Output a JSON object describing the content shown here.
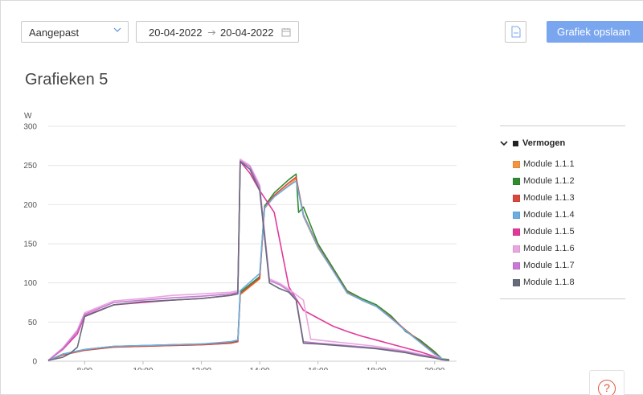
{
  "toolbar": {
    "range_select": "Aangepast",
    "date_from": "20-04-2022",
    "date_to": "20-04-2022",
    "save_label": "Grafiek opslaan"
  },
  "page_title": "Grafieken 5",
  "legend": {
    "group_label": "Vermogen"
  },
  "help_label": "?",
  "colors": {
    "accent": "#7aa6ef",
    "help": "#e0533a"
  },
  "chart_data": {
    "type": "line",
    "ylabel": "W",
    "ylim": [
      0,
      300
    ],
    "yticks": [
      0,
      50,
      100,
      150,
      200,
      250,
      300
    ],
    "xlim": [
      "06:45",
      "20:45"
    ],
    "xticks": [
      "8:00",
      "10:00",
      "12:00",
      "14:00",
      "16:00",
      "18:00",
      "20:00"
    ],
    "series": [
      {
        "name": "Module 1.1.1",
        "color": "#f5943f",
        "x": [
          "6:45",
          "7:15",
          "8:00",
          "9:00",
          "10:00",
          "11:00",
          "12:00",
          "13:00",
          "13:15",
          "13:20",
          "14:00",
          "14:10",
          "14:30",
          "15:00",
          "15:15",
          "15:30",
          "16:00",
          "17:00",
          "17:30",
          "18:00",
          "18:30",
          "19:00",
          "19:30",
          "20:00",
          "20:15",
          "20:30"
        ],
        "values": [
          1,
          8,
          14,
          18,
          19,
          20,
          21,
          23,
          25,
          85,
          105,
          195,
          210,
          225,
          233,
          185,
          145,
          88,
          78,
          70,
          55,
          40,
          25,
          10,
          3,
          1
        ]
      },
      {
        "name": "Module 1.1.2",
        "color": "#2e8b2e",
        "x": [
          "6:45",
          "7:15",
          "8:00",
          "9:00",
          "10:00",
          "11:00",
          "12:00",
          "13:00",
          "13:15",
          "13:20",
          "14:00",
          "14:10",
          "14:30",
          "15:00",
          "15:15",
          "15:20",
          "15:30",
          "16:00",
          "17:00",
          "17:30",
          "18:00",
          "18:30",
          "18:50",
          "19:00",
          "19:30",
          "20:00",
          "20:15",
          "20:30"
        ],
        "values": [
          1,
          9,
          15,
          19,
          20,
          21,
          22,
          24,
          26,
          88,
          108,
          198,
          215,
          232,
          239,
          190,
          197,
          150,
          90,
          80,
          72,
          58,
          45,
          38,
          27,
          12,
          3,
          2
        ]
      },
      {
        "name": "Module 1.1.3",
        "color": "#d9483b",
        "x": [
          "6:45",
          "7:15",
          "8:00",
          "9:00",
          "10:00",
          "11:00",
          "12:00",
          "13:00",
          "13:15",
          "13:20",
          "14:00",
          "14:10",
          "14:30",
          "15:00",
          "15:15",
          "15:30",
          "16:00",
          "17:00",
          "17:30",
          "18:00",
          "18:30",
          "19:00",
          "19:30",
          "20:00",
          "20:15",
          "20:30"
        ],
        "values": [
          1,
          8,
          14,
          18,
          19,
          20,
          21,
          23,
          25,
          86,
          106,
          196,
          212,
          228,
          235,
          187,
          147,
          88,
          78,
          70,
          56,
          40,
          25,
          10,
          3,
          1
        ]
      },
      {
        "name": "Module 1.1.4",
        "color": "#6aaee2",
        "x": [
          "6:45",
          "7:15",
          "8:00",
          "9:00",
          "10:00",
          "11:00",
          "12:00",
          "13:00",
          "13:15",
          "13:20",
          "14:00",
          "14:10",
          "14:30",
          "15:00",
          "15:15",
          "15:30",
          "16:00",
          "17:00",
          "17:30",
          "18:00",
          "18:30",
          "19:00",
          "19:30",
          "20:00",
          "20:15",
          "20:30"
        ],
        "values": [
          1,
          9,
          15,
          19,
          20,
          21,
          22,
          25,
          27,
          90,
          112,
          196,
          210,
          224,
          230,
          186,
          146,
          87,
          78,
          70,
          55,
          39,
          24,
          9,
          3,
          1
        ]
      },
      {
        "name": "Module 1.1.5",
        "color": "#e0399a",
        "x": [
          "6:45",
          "7:15",
          "7:45",
          "8:00",
          "9:00",
          "10:00",
          "11:00",
          "12:00",
          "13:00",
          "13:15",
          "13:20",
          "13:40",
          "14:00",
          "14:30",
          "15:00",
          "15:30",
          "16:00",
          "16:30",
          "17:00",
          "17:30",
          "18:00",
          "18:30",
          "19:00",
          "19:30",
          "20:00",
          "20:15",
          "20:30"
        ],
        "values": [
          1,
          15,
          35,
          58,
          72,
          75,
          78,
          80,
          84,
          88,
          255,
          240,
          218,
          190,
          95,
          65,
          55,
          45,
          38,
          32,
          27,
          22,
          17,
          12,
          6,
          2,
          1
        ]
      },
      {
        "name": "Module 1.1.6",
        "color": "#e9a6df",
        "x": [
          "6:45",
          "7:15",
          "7:45",
          "8:00",
          "9:00",
          "10:00",
          "11:00",
          "12:00",
          "13:00",
          "13:15",
          "13:20",
          "13:40",
          "14:00",
          "14:20",
          "14:40",
          "15:00",
          "15:30",
          "15:45",
          "16:00",
          "17:00",
          "18:00",
          "19:00",
          "19:30",
          "20:00",
          "20:15",
          "20:30"
        ],
        "values": [
          1,
          17,
          40,
          62,
          77,
          80,
          84,
          86,
          88,
          90,
          258,
          250,
          225,
          105,
          100,
          92,
          78,
          28,
          27,
          23,
          19,
          13,
          9,
          5,
          2,
          1
        ]
      },
      {
        "name": "Module 1.1.7",
        "color": "#c77ad5",
        "x": [
          "6:45",
          "7:15",
          "7:45",
          "8:00",
          "9:00",
          "10:00",
          "11:00",
          "12:00",
          "13:00",
          "13:15",
          "13:20",
          "13:40",
          "14:00",
          "14:20",
          "14:40",
          "15:00",
          "15:15",
          "15:30",
          "16:00",
          "17:00",
          "18:00",
          "19:00",
          "19:30",
          "20:00",
          "20:15",
          "20:30"
        ],
        "values": [
          1,
          16,
          38,
          60,
          75,
          78,
          81,
          83,
          86,
          88,
          256,
          248,
          222,
          103,
          98,
          90,
          80,
          25,
          23,
          20,
          17,
          12,
          8,
          5,
          2,
          1
        ]
      },
      {
        "name": "Module 1.1.8",
        "color": "#656b78",
        "x": [
          "6:45",
          "7:15",
          "7:30",
          "7:45",
          "8:00",
          "9:00",
          "10:00",
          "11:00",
          "12:00",
          "13:00",
          "13:15",
          "13:20",
          "13:40",
          "14:00",
          "14:20",
          "14:40",
          "15:00",
          "15:15",
          "15:30",
          "16:00",
          "17:00",
          "18:00",
          "19:00",
          "19:30",
          "20:00",
          "20:15",
          "20:30"
        ],
        "values": [
          1,
          5,
          10,
          18,
          57,
          72,
          76,
          78,
          80,
          84,
          86,
          255,
          245,
          218,
          100,
          93,
          88,
          78,
          23,
          22,
          19,
          16,
          11,
          7,
          4,
          2,
          1
        ]
      }
    ]
  }
}
